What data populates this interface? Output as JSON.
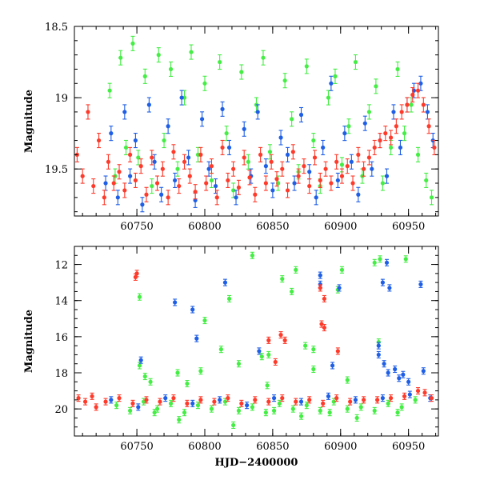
{
  "chart_data": [
    {
      "type": "scatter",
      "title": "",
      "xlabel": "",
      "ylabel": "Magnitude",
      "xlim": [
        60704,
        60972
      ],
      "ylim": [
        19.83,
        18.5
      ],
      "y_inverted": true,
      "xticks": [
        60750,
        60800,
        60850,
        60900,
        60950
      ],
      "xtick_labels": [
        "60750",
        "60800",
        "60850",
        "60900",
        "60950"
      ],
      "yticks": [
        18.5,
        19,
        19.5
      ],
      "ytick_labels": [
        "18.5",
        "19",
        "19.5"
      ],
      "series": [
        {
          "name": "green",
          "color": "#44ee44",
          "x": [
            60730,
            60734,
            60738,
            60742,
            60747,
            60751,
            60756,
            60761,
            60766,
            60770,
            60775,
            60780,
            60785,
            60790,
            60795,
            60800,
            60805,
            60811,
            60816,
            60821,
            60827,
            60832,
            60838,
            60843,
            60848,
            60854,
            60859,
            60864,
            60869,
            60875,
            60880,
            60885,
            60891,
            60896,
            60901,
            60906,
            60911,
            60916,
            60921,
            60926,
            60931,
            60937,
            60942,
            60947,
            60952,
            60957,
            60963,
            60967
          ],
          "y": [
            18.95,
            19.55,
            18.72,
            19.35,
            18.62,
            19.42,
            18.85,
            19.62,
            18.7,
            19.3,
            18.8,
            19.5,
            19.0,
            18.68,
            19.4,
            18.9,
            19.58,
            18.75,
            19.25,
            19.65,
            18.82,
            19.45,
            19.05,
            18.72,
            19.38,
            19.6,
            18.88,
            19.15,
            19.52,
            18.78,
            19.3,
            19.62,
            19.0,
            18.85,
            19.47,
            19.2,
            18.75,
            19.55,
            19.1,
            18.92,
            19.6,
            19.35,
            18.8,
            19.25,
            19.05,
            19.4,
            19.58,
            19.7
          ]
        },
        {
          "name": "blue",
          "color": "#1f5fe6",
          "x": [
            60727,
            60731,
            60736,
            60741,
            60745,
            60749,
            60754,
            60759,
            60763,
            60768,
            60773,
            60778,
            60783,
            60788,
            60793,
            60798,
            60803,
            60808,
            60813,
            60818,
            60823,
            60829,
            60834,
            60839,
            60845,
            60850,
            60856,
            60861,
            60866,
            60871,
            60877,
            60882,
            60887,
            60893,
            60898,
            60903,
            60908,
            60913,
            60918,
            60923,
            60929,
            60934,
            60939,
            60944,
            60949,
            60954,
            60959,
            60964,
            60968
          ],
          "y": [
            19.6,
            19.25,
            19.7,
            19.1,
            19.55,
            19.3,
            19.75,
            19.05,
            19.45,
            19.68,
            19.2,
            19.58,
            19.0,
            19.42,
            19.72,
            19.15,
            19.5,
            19.62,
            19.08,
            19.35,
            19.7,
            19.22,
            19.55,
            19.1,
            19.48,
            19.65,
            19.28,
            19.4,
            19.6,
            19.12,
            19.52,
            19.7,
            19.35,
            18.9,
            19.58,
            19.25,
            19.45,
            19.68,
            19.18,
            19.5,
            19.3,
            19.55,
            19.1,
            19.35,
            19.05,
            18.95,
            18.9,
            19.1,
            19.3
          ]
        },
        {
          "name": "red",
          "color": "#ff3a2a",
          "x": [
            60706,
            60710,
            60714,
            60718,
            60722,
            60726,
            60729,
            60733,
            60737,
            60741,
            60745,
            60749,
            60753,
            60757,
            60761,
            60765,
            60769,
            60773,
            60777,
            60781,
            60785,
            60789,
            60793,
            60797,
            60801,
            60805,
            60809,
            60813,
            60817,
            60821,
            60825,
            60829,
            60833,
            60837,
            60841,
            60845,
            60849,
            60853,
            60857,
            60861,
            60865,
            60869,
            60873,
            60877,
            60881,
            60885,
            60889,
            60893,
            60897,
            60901,
            60905,
            60909,
            60913,
            60917,
            60921,
            60925,
            60929,
            60933,
            60937,
            60941,
            60945,
            60949,
            60953,
            60957,
            60961,
            60965,
            60969
          ],
          "y": [
            19.4,
            19.55,
            19.1,
            19.62,
            19.3,
            19.7,
            19.45,
            19.6,
            19.52,
            19.65,
            19.4,
            19.58,
            19.48,
            19.68,
            19.42,
            19.6,
            19.5,
            19.7,
            19.38,
            19.62,
            19.45,
            19.55,
            19.66,
            19.4,
            19.6,
            19.48,
            19.7,
            19.35,
            19.58,
            19.5,
            19.63,
            19.42,
            19.56,
            19.68,
            19.4,
            19.6,
            19.45,
            19.57,
            19.5,
            19.65,
            19.38,
            19.55,
            19.48,
            19.62,
            19.42,
            19.58,
            19.5,
            19.6,
            19.45,
            19.55,
            19.48,
            19.6,
            19.4,
            19.5,
            19.42,
            19.35,
            19.3,
            19.25,
            19.28,
            19.2,
            19.1,
            19.05,
            18.98,
            18.95,
            19.05,
            19.2,
            19.35
          ]
        }
      ]
    },
    {
      "type": "scatter",
      "title": "",
      "xlabel": "HJD−2400000",
      "ylabel": "Magnitude",
      "xlim": [
        60704,
        60972
      ],
      "ylim": [
        21.5,
        11.0
      ],
      "y_inverted": true,
      "xticks": [
        60750,
        60800,
        60850,
        60900,
        60950
      ],
      "xtick_labels": [
        "60750",
        "60800",
        "60850",
        "60900",
        "60950"
      ],
      "yticks": [
        12,
        14,
        16,
        18,
        20
      ],
      "ytick_labels": [
        "12",
        "14",
        "16",
        "18",
        "20"
      ],
      "series": [
        {
          "name": "green",
          "color": "#44ee44",
          "x": [
            60752,
            60800,
            60812,
            60818,
            60835,
            60842,
            60846,
            60857,
            60864,
            60867,
            60874,
            60880,
            60898,
            60901,
            60925,
            60929,
            60948,
            60752,
            60756,
            60760,
            60780,
            60787,
            60797,
            60825,
            60847,
            60880,
            60905,
            60928,
            60763,
            60781,
            60821,
            60851,
            60871,
            60892,
            60912,
            60942,
            60735,
            60745,
            60755,
            60765,
            60775,
            60785,
            60795,
            60805,
            60815,
            60825,
            60835,
            60845,
            60855,
            60865,
            60875,
            60885,
            60895,
            60905,
            60915,
            60925,
            60935,
            60945,
            60955
          ],
          "y": [
            13.8,
            15.1,
            16.7,
            13.9,
            11.5,
            17.1,
            18.7,
            12.8,
            13.5,
            12.3,
            16.5,
            16.7,
            13.4,
            12.3,
            11.9,
            11.7,
            11.7,
            17.6,
            18.2,
            18.5,
            18.0,
            18.6,
            17.9,
            17.5,
            17.0,
            17.8,
            18.4,
            16.3,
            20.2,
            20.6,
            20.9,
            20.1,
            20.4,
            20.2,
            20.5,
            20.2,
            19.8,
            20.1,
            19.6,
            20.0,
            19.7,
            20.2,
            19.8,
            20.0,
            19.6,
            20.1,
            19.9,
            20.2,
            19.7,
            20.0,
            19.8,
            20.1,
            19.6,
            20.0,
            19.9,
            20.1,
            19.7,
            19.9,
            19.5
          ]
        },
        {
          "name": "blue",
          "color": "#1f5fe6",
          "x": [
            60753,
            60778,
            60791,
            60794,
            60815,
            60885,
            60885,
            60899,
            60931,
            60934,
            60936,
            60959,
            60840,
            60894,
            60928,
            60928,
            60932,
            60935,
            60940,
            60943,
            60946,
            60950,
            60961,
            60731,
            60751,
            60771,
            60791,
            60811,
            60831,
            60851,
            60871,
            60891,
            60911,
            60931,
            60951,
            60966
          ],
          "y": [
            17.3,
            14.1,
            14.5,
            16.1,
            13.0,
            12.6,
            13.1,
            13.3,
            13.0,
            11.9,
            13.3,
            13.1,
            16.8,
            17.6,
            17.0,
            16.5,
            17.5,
            18.0,
            17.8,
            18.3,
            18.1,
            18.5,
            17.9,
            19.5,
            19.9,
            19.4,
            19.7,
            19.5,
            19.8,
            19.4,
            19.6,
            19.3,
            19.5,
            19.4,
            19.2,
            19.4
          ]
        },
        {
          "name": "red",
          "color": "#ff3a2a",
          "x": [
            60749,
            60750,
            60847,
            60852,
            60885,
            60888,
            60886,
            60888,
            60856,
            60859,
            60898,
            60707,
            60712,
            60717,
            60720,
            60727,
            60737,
            60747,
            60757,
            60767,
            60777,
            60787,
            60797,
            60807,
            60817,
            60827,
            60837,
            60847,
            60857,
            60867,
            60877,
            60887,
            60897,
            60907,
            60917,
            60927,
            60937,
            60947,
            60957,
            60962,
            60967
          ],
          "y": [
            12.7,
            12.5,
            16.2,
            17.4,
            13.3,
            13.9,
            15.3,
            15.5,
            15.9,
            16.2,
            16.8,
            19.4,
            19.6,
            19.3,
            19.9,
            19.6,
            19.4,
            19.7,
            19.5,
            19.6,
            19.4,
            19.7,
            19.5,
            19.6,
            19.4,
            19.7,
            19.5,
            19.6,
            19.4,
            19.6,
            19.5,
            19.7,
            19.4,
            19.6,
            19.5,
            19.5,
            19.4,
            19.3,
            19.0,
            19.1,
            19.4
          ]
        }
      ]
    }
  ]
}
